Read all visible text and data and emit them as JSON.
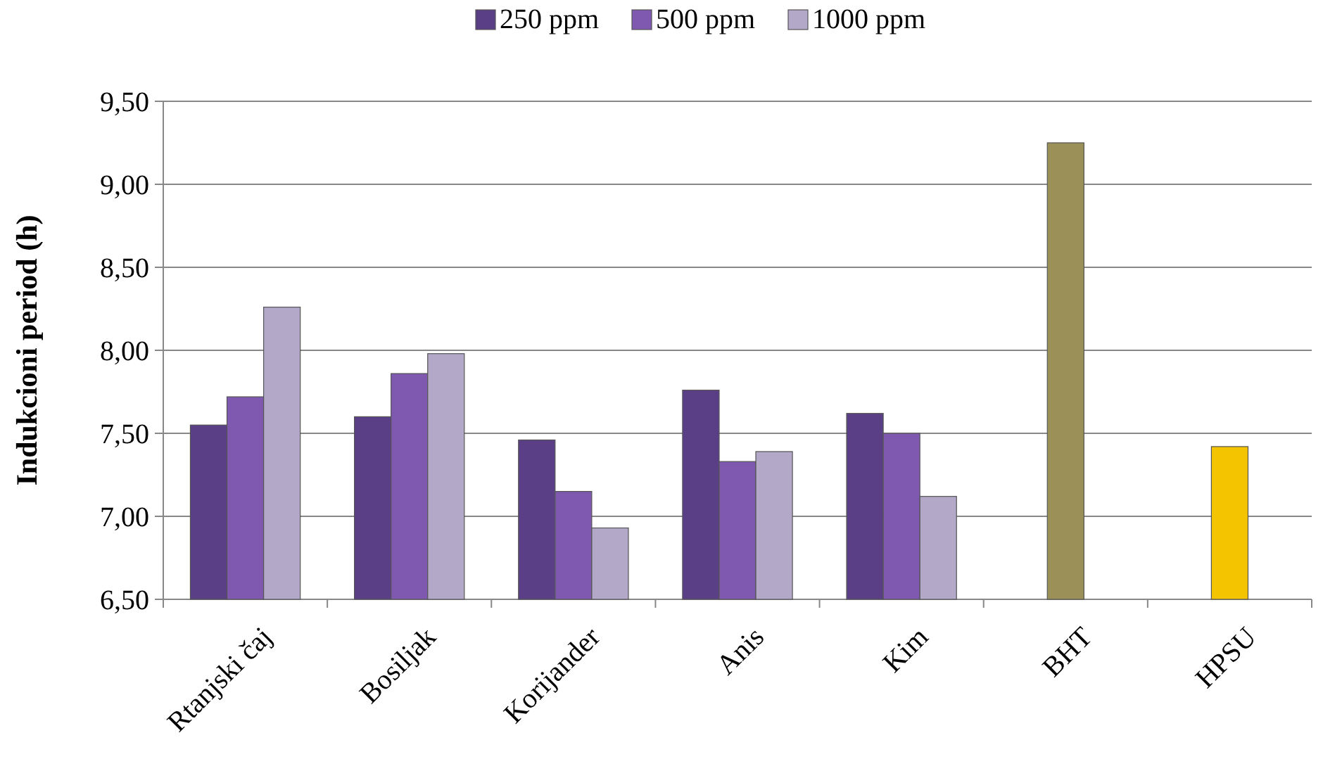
{
  "chart_data": {
    "type": "bar",
    "ylabel": "Indukcioni period (h)",
    "categories": [
      "Rtanjski čaj",
      "Bosiljak",
      "Korijander",
      "Anis",
      "Kim",
      "BHT",
      "HPSU"
    ],
    "series": [
      {
        "name": "250 ppm",
        "color": "#5b3f86",
        "values": [
          7.55,
          7.6,
          7.46,
          7.76,
          7.62,
          null,
          null
        ]
      },
      {
        "name": "500 ppm",
        "color": "#7f58b0",
        "values": [
          7.72,
          7.86,
          7.15,
          7.33,
          7.5,
          null,
          null
        ]
      },
      {
        "name": "1000 ppm",
        "color": "#b3a8c8",
        "values": [
          8.26,
          7.98,
          6.93,
          7.39,
          7.12,
          null,
          null
        ]
      },
      {
        "color": "#9a9058",
        "values": [
          null,
          null,
          null,
          null,
          null,
          9.25,
          null
        ]
      },
      {
        "color": "#f5c400",
        "values": [
          null,
          null,
          null,
          null,
          null,
          null,
          7.42
        ]
      }
    ],
    "ylim": [
      6.5,
      9.5
    ],
    "yticks": [
      {
        "value": 6.5,
        "label": "6,50"
      },
      {
        "value": 7,
        "label": "7,00"
      },
      {
        "value": 7.5,
        "label": "7,50"
      },
      {
        "value": 8,
        "label": "8,00"
      },
      {
        "value": 8.5,
        "label": "8,50"
      },
      {
        "value": 9,
        "label": "9,00"
      },
      {
        "value": 9.5,
        "label": "9,50"
      }
    ],
    "grid": "y",
    "legend": "top"
  }
}
